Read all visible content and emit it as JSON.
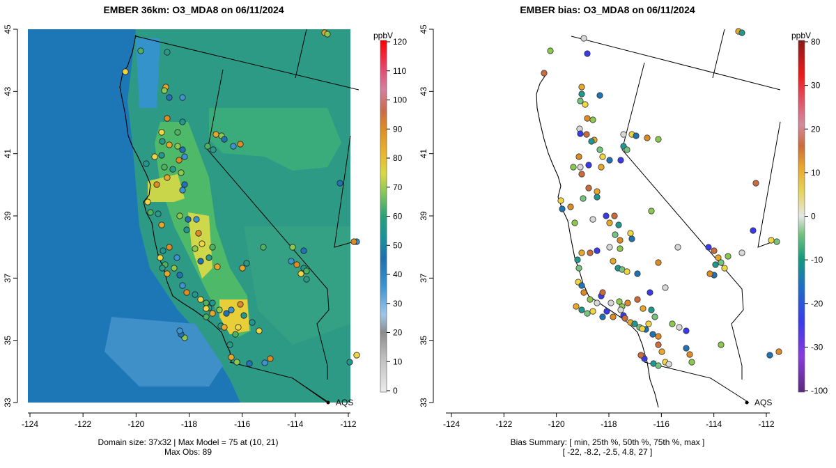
{
  "left": {
    "title": "EMBER 36km: O3_MDA8 on 06/11/2024",
    "units": "ppbV",
    "colorbar_ticks": [
      "120",
      "110",
      "100",
      "90",
      "80",
      "70",
      "60",
      "50",
      "40",
      "30",
      "20",
      "10",
      "0"
    ],
    "footer_line1": "Domain size: 37x32 | Max Model = 75 at (10, 21)",
    "footer_line2": "Max Obs: 89",
    "legend_marker": "AQS"
  },
  "right": {
    "title": "EMBER bias: O3_MDA8 on 06/11/2024",
    "units": "ppbV",
    "colorbar_ticks": [
      "80",
      "30",
      "20",
      "10",
      "0",
      "-10",
      "-20",
      "-30",
      "-100"
    ],
    "footer_line1": "Bias Summary: [ min, 25th %, 50th %, 75th %, max ]",
    "footer_line2": "[ -22,   -8.2,   -2.5,   4.8,   27 ]",
    "legend_marker": "AQS"
  },
  "axes": {
    "x_ticks": [
      "-124",
      "-122",
      "-120",
      "-118",
      "-116",
      "-114",
      "-112"
    ],
    "y_ticks": [
      "45",
      "43",
      "41",
      "39",
      "37",
      "35",
      "33"
    ]
  },
  "chart_data": {
    "type": "map",
    "variable": "O3_MDA8",
    "date": "06/11/2024",
    "model": "EMBER 36km",
    "domain_size": "37x32",
    "max_model": 75,
    "max_model_cell": [
      10,
      21
    ],
    "max_obs": 89,
    "lon_range": [
      -124,
      -112
    ],
    "lat_range": [
      33,
      45
    ],
    "bias_summary": {
      "min": -22,
      "p25": -8.2,
      "p50": -2.5,
      "p75": 4.8,
      "max": 27
    }
  }
}
